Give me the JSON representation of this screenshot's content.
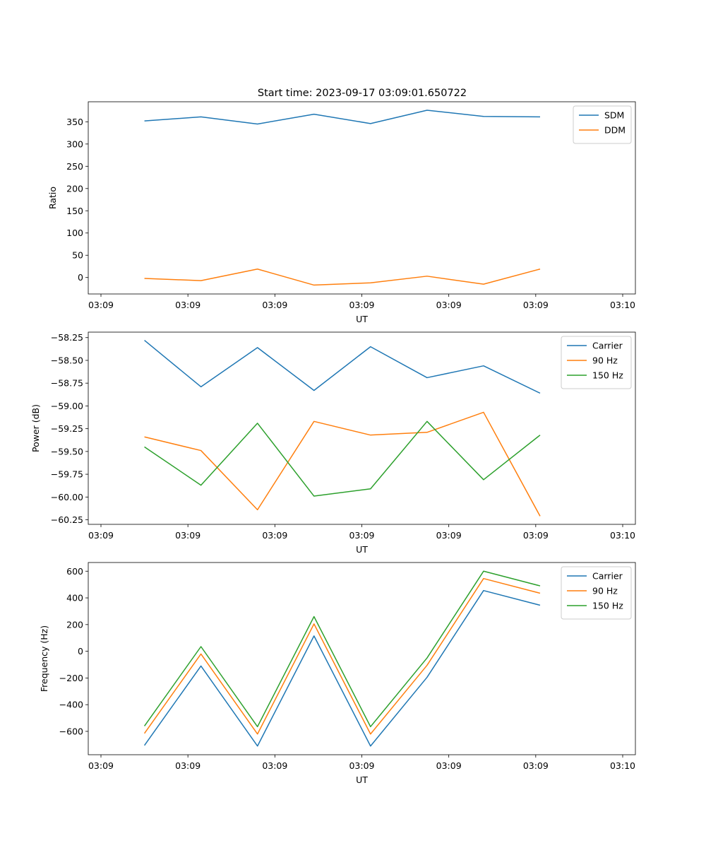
{
  "title": "Start time: 2023-09-17 03:09:01.650722",
  "chart_data": [
    {
      "type": "line",
      "ylabel": "Ratio",
      "xlabel": "UT",
      "xticks": [
        "03:09",
        "03:09",
        "03:09",
        "03:09",
        "03:09",
        "03:09",
        "03:10"
      ],
      "xlim": [
        0,
        6
      ],
      "x": [
        0.5,
        1.15,
        1.8,
        2.45,
        3.1,
        3.75,
        4.4,
        5.05
      ],
      "ylim": [
        -37,
        395
      ],
      "yticks": [
        0,
        50,
        100,
        150,
        200,
        250,
        300,
        350
      ],
      "ytick_labels": [
        "0",
        "50",
        "100",
        "150",
        "200",
        "250",
        "300",
        "350"
      ],
      "legend_position": "top-right",
      "series": [
        {
          "name": "SDM",
          "color": "#1f77b4",
          "values": [
            352,
            361,
            345,
            367,
            346,
            376,
            362,
            361
          ]
        },
        {
          "name": "DDM",
          "color": "#ff7f0e",
          "values": [
            -2,
            -7,
            19,
            -17,
            -12,
            3,
            -15,
            19
          ]
        }
      ]
    },
    {
      "type": "line",
      "ylabel": "Power (dB)",
      "xlabel": "UT",
      "xticks": [
        "03:09",
        "03:09",
        "03:09",
        "03:09",
        "03:09",
        "03:09",
        "03:10"
      ],
      "xlim": [
        0,
        6
      ],
      "x": [
        0.5,
        1.15,
        1.8,
        2.45,
        3.1,
        3.75,
        4.4,
        5.05
      ],
      "ylim": [
        -60.3,
        -58.19
      ],
      "yticks": [
        -60.25,
        -60.0,
        -59.75,
        -59.5,
        -59.25,
        -59.0,
        -58.75,
        -58.5,
        -58.25
      ],
      "ytick_labels": [
        "−60.25",
        "−60.00",
        "−59.75",
        "−59.50",
        "−59.25",
        "−59.00",
        "−58.75",
        "−58.50",
        "−58.25"
      ],
      "legend_position": "top-right",
      "series": [
        {
          "name": "Carrier",
          "color": "#1f77b4",
          "values": [
            -58.28,
            -58.79,
            -58.36,
            -58.83,
            -58.35,
            -58.69,
            -58.56,
            -58.86
          ]
        },
        {
          "name": "90 Hz",
          "color": "#ff7f0e",
          "values": [
            -59.34,
            -59.49,
            -60.14,
            -59.17,
            -59.32,
            -59.29,
            -59.07,
            -60.21
          ]
        },
        {
          "name": "150 Hz",
          "color": "#2ca02c",
          "values": [
            -59.45,
            -59.87,
            -59.19,
            -59.99,
            -59.91,
            -59.17,
            -59.81,
            -59.32
          ]
        }
      ]
    },
    {
      "type": "line",
      "ylabel": "Frequency (Hz)",
      "xlabel": "UT",
      "xticks": [
        "03:09",
        "03:09",
        "03:09",
        "03:09",
        "03:09",
        "03:09",
        "03:10"
      ],
      "xlim": [
        0,
        6
      ],
      "x": [
        0.5,
        1.15,
        1.8,
        2.45,
        3.1,
        3.75,
        4.4,
        5.05
      ],
      "ylim": [
        -775,
        665
      ],
      "yticks": [
        -600,
        -400,
        -200,
        0,
        200,
        400,
        600
      ],
      "ytick_labels": [
        "−600",
        "−400",
        "−200",
        "0",
        "200",
        "400",
        "600"
      ],
      "legend_position": "top-right",
      "series": [
        {
          "name": "Carrier",
          "color": "#1f77b4",
          "values": [
            -705,
            -110,
            -710,
            115,
            -710,
            -195,
            455,
            345
          ]
        },
        {
          "name": "90 Hz",
          "color": "#ff7f0e",
          "values": [
            -615,
            -20,
            -620,
            205,
            -620,
            -105,
            545,
            435
          ]
        },
        {
          "name": "150 Hz",
          "color": "#2ca02c",
          "values": [
            -560,
            35,
            -565,
            260,
            -565,
            -50,
            600,
            490
          ]
        }
      ]
    }
  ]
}
